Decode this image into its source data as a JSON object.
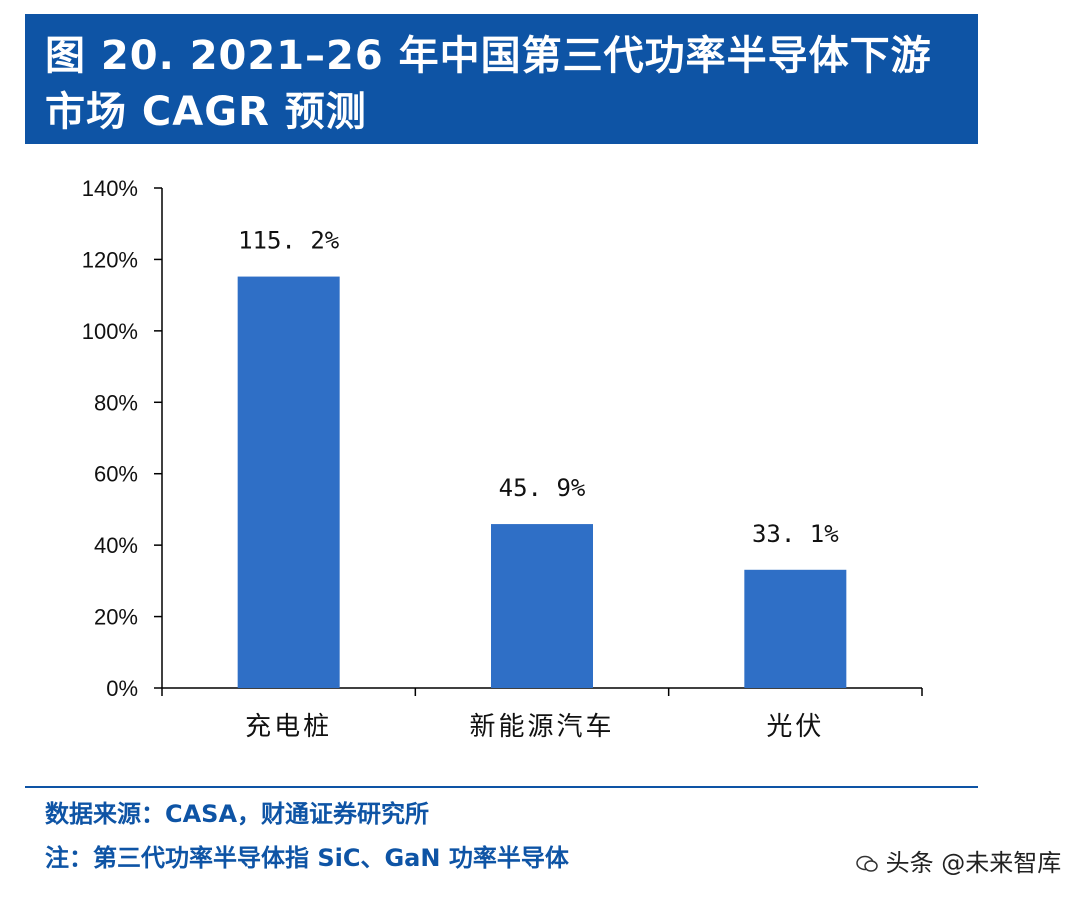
{
  "figure": {
    "title": "图 20. 2021–26 年中国第三代功率半导体下游市场 CAGR 预测"
  },
  "chart_data": {
    "type": "bar",
    "title": "",
    "xlabel": "",
    "ylabel": "",
    "categories": [
      "充电桩",
      "新能源汽车",
      "光伏"
    ],
    "values": [
      115.2,
      45.9,
      33.1
    ],
    "value_labels": [
      "115. 2%",
      "45. 9%",
      "33. 1%"
    ],
    "ylim": [
      0,
      140
    ],
    "yticks": [
      0,
      20,
      40,
      60,
      80,
      100,
      120,
      140
    ],
    "ytick_labels": [
      "0%",
      "20%",
      "40%",
      "60%",
      "80%",
      "100%",
      "120%",
      "140%"
    ],
    "bar_color": "#2f6fc6",
    "grid": false,
    "legend": "none"
  },
  "footer": {
    "source": "数据来源：CASA，财通证券研究所",
    "note": "注：第三代功率半导体指 SiC、GaN 功率半导体"
  },
  "watermark": {
    "text": "头条 @未来智库",
    "icon": "wechat-icon"
  },
  "colors": {
    "banner": "#0e54a5",
    "footer_text": "#0e54a5"
  }
}
